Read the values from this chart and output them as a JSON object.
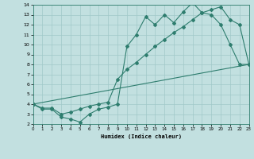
{
  "xlabel": "Humidex (Indice chaleur)",
  "xlim": [
    0,
    23
  ],
  "ylim": [
    2,
    14
  ],
  "xticks": [
    0,
    1,
    2,
    3,
    4,
    5,
    6,
    7,
    8,
    9,
    10,
    11,
    12,
    13,
    14,
    15,
    16,
    17,
    18,
    19,
    20,
    21,
    22,
    23
  ],
  "yticks": [
    2,
    3,
    4,
    5,
    6,
    7,
    8,
    9,
    10,
    11,
    12,
    13,
    14
  ],
  "bg_color": "#c2e0e0",
  "line_color": "#2e7d6e",
  "grid_color": "#a0c8c8",
  "line1_x": [
    0,
    1,
    2,
    3,
    4,
    5,
    6,
    7,
    8,
    9,
    10,
    11,
    12,
    13,
    14,
    15,
    16,
    17,
    18,
    19,
    20,
    21,
    22,
    23
  ],
  "line1_y": [
    4,
    3.5,
    3.5,
    2.7,
    2.5,
    2.2,
    3.0,
    3.5,
    3.7,
    4.0,
    9.8,
    11.0,
    12.8,
    12.0,
    13.0,
    12.2,
    13.3,
    14.2,
    13.2,
    13.0,
    12.0,
    10.0,
    8.0,
    8.0
  ],
  "line2_x": [
    0,
    1,
    2,
    3,
    4,
    5,
    6,
    7,
    8,
    9,
    10,
    11,
    12,
    13,
    14,
    15,
    16,
    17,
    18,
    19,
    20,
    21,
    22,
    23
  ],
  "line2_y": [
    4,
    3.6,
    3.6,
    3.0,
    3.2,
    3.5,
    3.8,
    4.0,
    4.2,
    6.5,
    7.5,
    8.2,
    9.0,
    9.8,
    10.5,
    11.2,
    11.8,
    12.5,
    13.2,
    13.5,
    13.8,
    12.5,
    12.0,
    8.0
  ],
  "line3_x": [
    0,
    23
  ],
  "line3_y": [
    4,
    8.0
  ]
}
